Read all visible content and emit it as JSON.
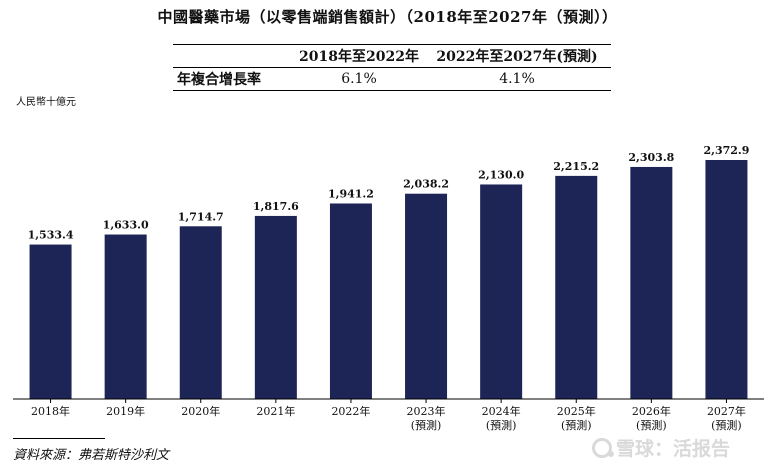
{
  "title": "中國醫藥市場（以零售端銷售額計）（2018年至2027年（預測））",
  "cagr_table": {
    "headers": [
      "",
      "2018年至2022年",
      "2022年至2027年(預測)"
    ],
    "row_label": "年複合增長率",
    "values": [
      "6.1%",
      "4.1%"
    ]
  },
  "source": "資料來源：弗若斯特沙利文",
  "watermark": "雪球：活报告",
  "colors": {
    "bar": "#1d2456",
    "axis": "#000000"
  },
  "chart_data": {
    "type": "bar",
    "title": "中國醫藥市場（以零售端銷售額計）（2018年至2027年（預測））",
    "ylabel": "人民幣十億元",
    "categories": [
      "2018年",
      "2019年",
      "2020年",
      "2021年",
      "2022年",
      "2023年",
      "2024年",
      "2025年",
      "2026年",
      "2027年"
    ],
    "category_notes": [
      "",
      "",
      "",
      "",
      "",
      "(預測)",
      "(預測)",
      "(預測)",
      "(預測)",
      "(預測)"
    ],
    "values": [
      1533.4,
      1633.0,
      1714.7,
      1817.6,
      1941.2,
      2038.2,
      2130.0,
      2215.2,
      2303.8,
      2372.9
    ],
    "value_labels": [
      "1,533.4",
      "1,633.0",
      "1,714.7",
      "1,817.6",
      "1,941.2",
      "2,038.2",
      "2,130.0",
      "2,215.2",
      "2,303.8",
      "2,372.9"
    ],
    "ylim": [
      0,
      2372.9
    ],
    "grid": false,
    "bar_color": "#1d2456"
  }
}
